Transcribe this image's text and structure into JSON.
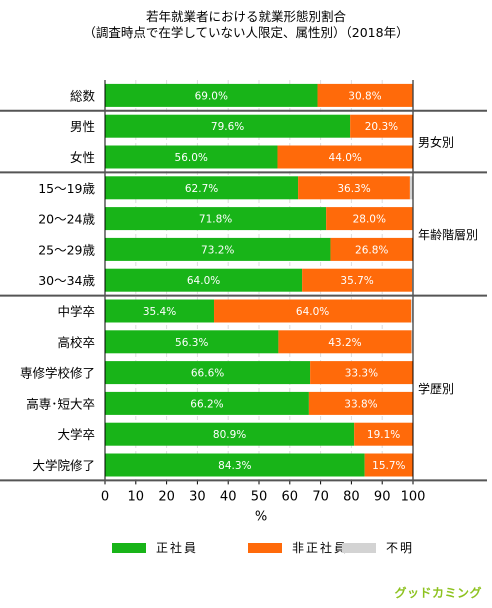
{
  "title_line1": "若年就業者における就業形態別割合",
  "title_line2": "（調査時点で在学していない人限定、属性別）（2018年）",
  "chart_data": {
    "type": "bar",
    "orientation": "horizontal",
    "stacked": true,
    "categories": [
      "総数",
      "男性",
      "女性",
      "15～19歳",
      "20～24歳",
      "25～29歳",
      "30～34歳",
      "中学卒",
      "高校卒",
      "専修学校修了",
      "高専･短大卒",
      "大学卒",
      "大学院修了"
    ],
    "groups": [
      {
        "label": "",
        "rows": [
          0
        ]
      },
      {
        "label": "男女別",
        "rows": [
          1,
          2
        ]
      },
      {
        "label": "年齢階層別",
        "rows": [
          3,
          4,
          5,
          6
        ]
      },
      {
        "label": "学歴別",
        "rows": [
          7,
          8,
          9,
          10,
          11,
          12
        ]
      }
    ],
    "series": [
      {
        "name": "正社員",
        "color": "#18b418",
        "values": [
          69.0,
          79.6,
          56.0,
          62.7,
          71.8,
          73.2,
          64.0,
          35.4,
          56.3,
          66.6,
          66.2,
          80.9,
          84.3
        ],
        "labels": [
          "69.0%",
          "79.6%",
          "56.0%",
          "62.7%",
          "71.8%",
          "73.2%",
          "64.0%",
          "35.4%",
          "56.3%",
          "66.6%",
          "66.2%",
          "80.9%",
          "84.3%"
        ]
      },
      {
        "name": "非正社員",
        "color": "#ff6a0a",
        "values": [
          30.8,
          20.3,
          44.0,
          36.3,
          28.0,
          26.8,
          35.7,
          64.0,
          43.2,
          33.3,
          33.8,
          19.1,
          15.7
        ],
        "labels": [
          "30.8%",
          "20.3%",
          "44.0%",
          "36.3%",
          "28.0%",
          "26.8%",
          "35.7%",
          "64.0%",
          "43.2%",
          "33.3%",
          "33.8%",
          "19.1%",
          "15.7%"
        ]
      },
      {
        "name": "不明",
        "color": "#d3d3d3",
        "values": [
          0.2,
          0.1,
          0.0,
          1.0,
          0.2,
          0.0,
          0.3,
          0.6,
          0.5,
          0.1,
          0.0,
          0.0,
          0.0
        ]
      }
    ],
    "xlim": [
      0,
      100
    ],
    "xticks": [
      0,
      10,
      20,
      30,
      40,
      50,
      60,
      70,
      80,
      90,
      100
    ],
    "xlabel": "%",
    "grid": "vertical dashed",
    "legend_position": "bottom"
  },
  "brand": "グッドカミング"
}
